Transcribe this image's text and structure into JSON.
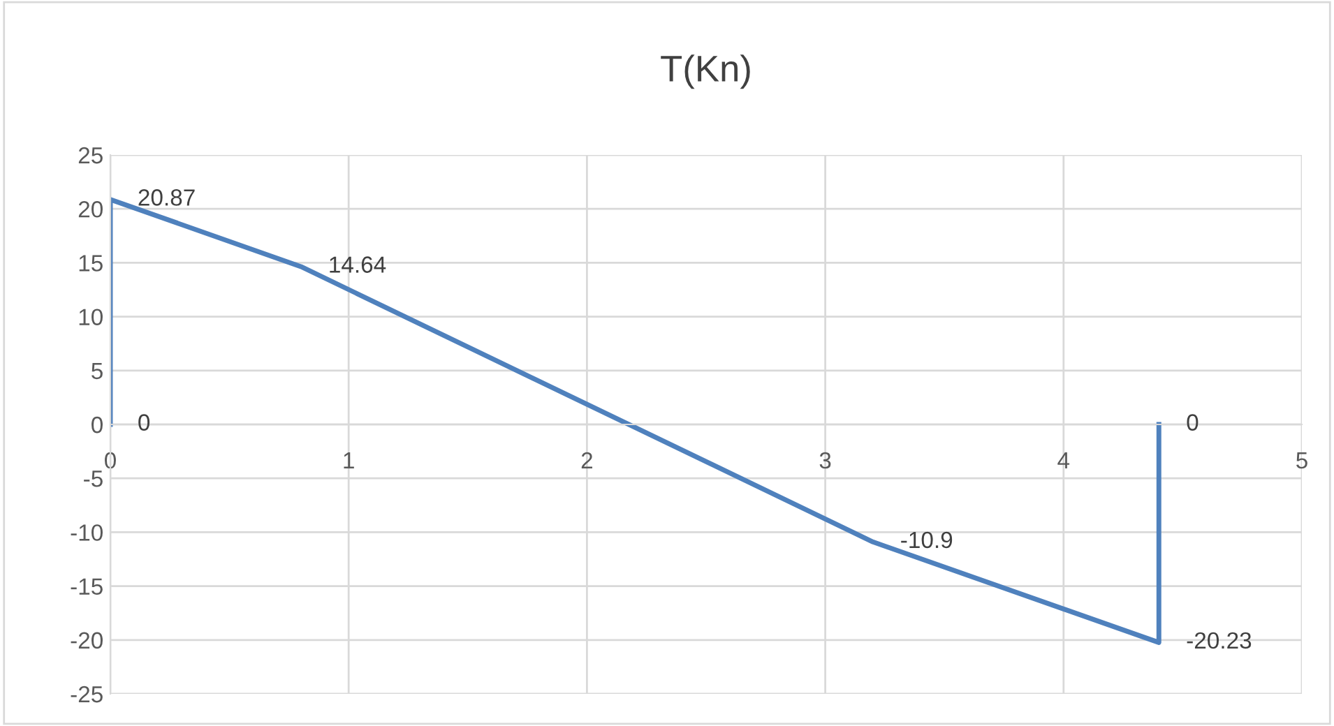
{
  "chart_data": {
    "type": "line",
    "title": "T(Kn)",
    "x": [
      0,
      0,
      0.8,
      3.2,
      4.4,
      4.4
    ],
    "series": [
      {
        "color": "#4f81bd",
        "values": [
          0,
          20.87,
          14.64,
          -10.9,
          -20.23,
          0
        ]
      }
    ],
    "xlim": [
      0,
      5
    ],
    "xticks": [
      0,
      1,
      2,
      3,
      4,
      5
    ],
    "ylim": [
      -25,
      25
    ],
    "yticks": [
      -25,
      -20,
      -15,
      -10,
      -5,
      0,
      5,
      10,
      15,
      20,
      25
    ],
    "grid": true,
    "data_labels": true,
    "marker": "none",
    "line_style": "solid"
  }
}
